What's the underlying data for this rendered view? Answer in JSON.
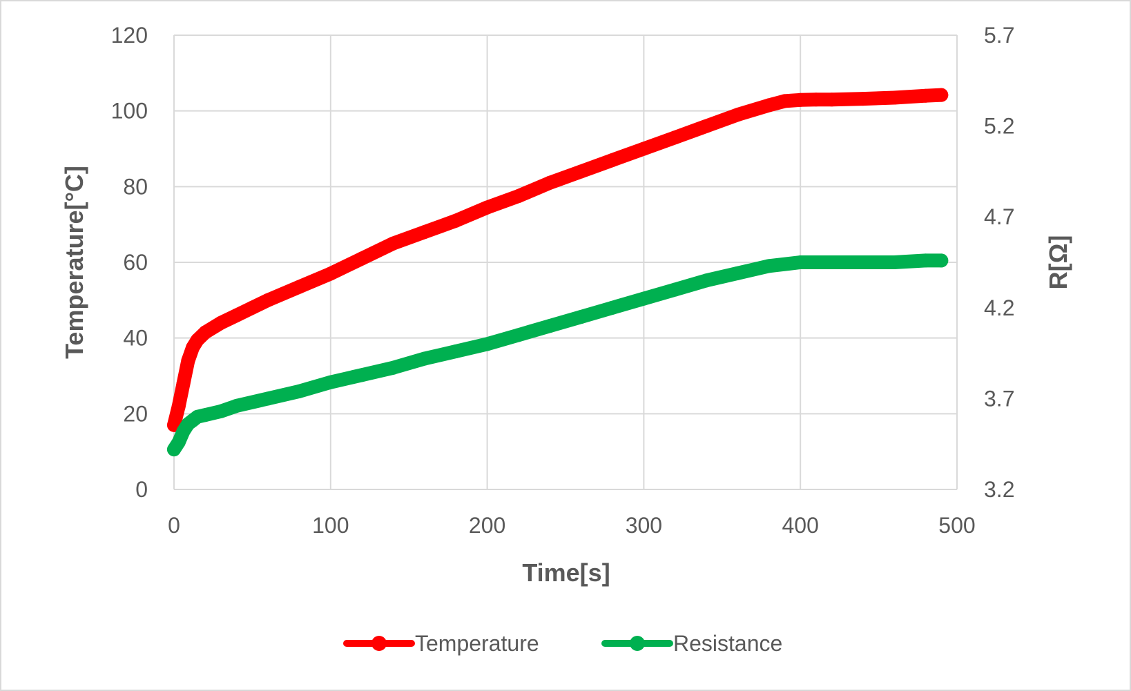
{
  "chart_data": {
    "type": "line",
    "title": "",
    "xlabel": "Time[s]",
    "ylabel": "Temperature[°C]",
    "y2label": "R[Ω]",
    "xlim": [
      0,
      500
    ],
    "ylim": [
      0,
      120
    ],
    "y2lim": [
      3.2,
      5.7
    ],
    "x_ticks": [
      "0",
      "100",
      "200",
      "300",
      "400",
      "500"
    ],
    "y_ticks": [
      "0",
      "20",
      "40",
      "60",
      "80",
      "100",
      "120"
    ],
    "y2_ticks": [
      "3.2",
      "3.7",
      "4.2",
      "4.7",
      "5.2",
      "5.7"
    ],
    "grid": true,
    "legend_position": "bottom",
    "series": [
      {
        "name": "Temperature",
        "axis": "left",
        "color": "#ff0000",
        "x": [
          0,
          3,
          6,
          9,
          12,
          15,
          20,
          30,
          40,
          50,
          60,
          80,
          100,
          120,
          140,
          160,
          180,
          200,
          220,
          240,
          260,
          280,
          300,
          320,
          340,
          360,
          380,
          390,
          400,
          410,
          420,
          440,
          460,
          480,
          490
        ],
        "y": [
          17,
          22,
          28,
          34,
          37.5,
          39.5,
          41.5,
          44,
          46,
          48,
          50,
          53.5,
          57,
          61,
          65,
          68,
          71,
          74.5,
          77.5,
          81,
          84,
          87,
          90,
          93,
          96,
          99,
          101.5,
          102.6,
          102.9,
          103,
          103,
          103.2,
          103.5,
          104,
          104.2
        ]
      },
      {
        "name": "Resistance",
        "axis": "right",
        "color": "#00b050",
        "x": [
          0,
          3,
          6,
          9,
          12,
          15,
          20,
          30,
          40,
          60,
          80,
          100,
          120,
          140,
          160,
          180,
          200,
          220,
          240,
          260,
          280,
          300,
          320,
          340,
          360,
          380,
          400,
          420,
          440,
          460,
          480,
          490
        ],
        "y": [
          3.42,
          3.46,
          3.52,
          3.56,
          3.58,
          3.6,
          3.61,
          3.63,
          3.66,
          3.7,
          3.74,
          3.79,
          3.83,
          3.87,
          3.92,
          3.96,
          4.0,
          4.05,
          4.1,
          4.15,
          4.2,
          4.25,
          4.3,
          4.35,
          4.39,
          4.43,
          4.45,
          4.45,
          4.45,
          4.45,
          4.46,
          4.46
        ]
      }
    ]
  }
}
